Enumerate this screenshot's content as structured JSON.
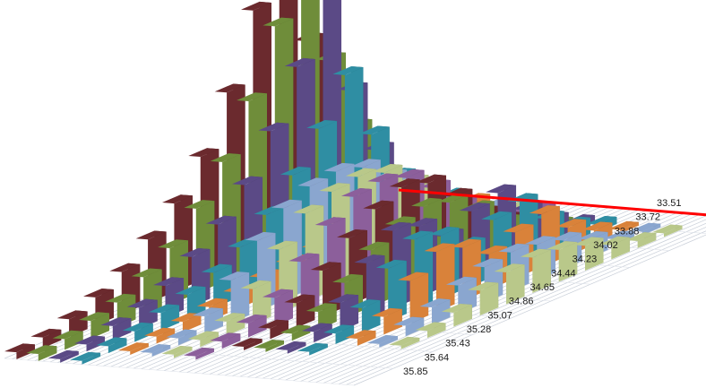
{
  "chart_data": {
    "type": "3d-bar",
    "title": "",
    "xlabel": "",
    "ylabel": "",
    "zlabel": "",
    "depth_axis_ticks": [
      "33.51",
      "33.72",
      "33.88",
      "34.02",
      "34.23",
      "34.44",
      "34.65",
      "34.86",
      "35.07",
      "35.28",
      "35.43",
      "35.64",
      "35.85"
    ],
    "legend": "none",
    "grid": true,
    "colors": {
      "series_palette": [
        "#6b2a2e",
        "#6f8d3a",
        "#5b4a86",
        "#2f8ea3",
        "#d9823a",
        "#8aa6cf",
        "#b9c88a",
        "#8c5f9b"
      ],
      "highlight_series": "#ff0000",
      "floor_line": "#c8ced8",
      "front_edge": "#ff0000"
    },
    "series": [
      {
        "values": [
          0.02,
          0.03,
          0.05,
          0.08,
          0.12,
          0.18,
          0.25,
          0.35,
          0.5,
          0.7,
          1.0,
          0.55,
          0.3,
          0.15,
          0.06
        ]
      },
      {
        "values": [
          0.02,
          0.03,
          0.05,
          0.07,
          0.11,
          0.16,
          0.24,
          0.34,
          0.48,
          0.66,
          0.9,
          0.5,
          0.28,
          0.12,
          0.05
        ]
      },
      {
        "values": [
          0.01,
          0.02,
          0.04,
          0.06,
          0.09,
          0.14,
          0.2,
          0.28,
          0.4,
          0.55,
          0.75,
          0.42,
          0.22,
          0.1,
          0.04
        ]
      },
      {
        "values": [
          0.01,
          0.02,
          0.03,
          0.05,
          0.07,
          0.1,
          0.14,
          0.2,
          0.28,
          0.38,
          0.5,
          0.3,
          0.15,
          0.07,
          0.03
        ]
      },
      {
        "values": [
          0.0,
          0.01,
          0.02,
          0.03,
          0.04,
          0.05,
          0.06,
          0.07,
          0.08,
          0.1,
          0.12,
          0.08,
          0.05,
          0.03,
          0.02
        ]
      },
      {
        "values": [
          0.0,
          0.01,
          0.02,
          0.05,
          0.12,
          0.2,
          0.26,
          0.29,
          0.3,
          0.28,
          0.22,
          0.14,
          0.07,
          0.03,
          0.01
        ]
      },
      {
        "values": [
          0.0,
          0.01,
          0.02,
          0.04,
          0.1,
          0.18,
          0.25,
          0.28,
          0.29,
          0.27,
          0.21,
          0.13,
          0.06,
          0.02,
          0.01
        ]
      },
      {
        "values": [
          0.0,
          0.01,
          0.02,
          0.04,
          0.08,
          0.15,
          0.22,
          0.27,
          0.28,
          0.26,
          0.2,
          0.12,
          0.05,
          0.02,
          0.01
        ]
      },
      {
        "values": [
          0.0,
          0.0,
          0.01,
          0.03,
          0.07,
          0.13,
          0.19,
          0.24,
          0.27,
          0.25,
          0.18,
          0.1,
          0.05,
          0.02,
          0.0
        ]
      },
      {
        "values": [
          0.0,
          0.0,
          0.01,
          0.02,
          0.05,
          0.1,
          0.16,
          0.2,
          0.22,
          0.2,
          0.15,
          0.08,
          0.04,
          0.01,
          0.0
        ]
      },
      {
        "values": [
          0.0,
          0.0,
          0.01,
          0.03,
          0.08,
          0.16,
          0.22,
          0.2,
          0.14,
          0.18,
          0.2,
          0.12,
          0.06,
          0.02,
          0.0
        ]
      },
      {
        "values": [
          0.0,
          0.0,
          0.01,
          0.03,
          0.07,
          0.15,
          0.2,
          0.18,
          0.12,
          0.16,
          0.18,
          0.1,
          0.05,
          0.02,
          0.0
        ]
      },
      {
        "values": [
          0.0,
          0.0,
          0.0,
          0.02,
          0.05,
          0.12,
          0.17,
          0.15,
          0.1,
          0.13,
          0.15,
          0.08,
          0.04,
          0.01,
          0.0
        ]
      },
      {
        "values": [
          0.0,
          0.0,
          0.0,
          0.01,
          0.03,
          0.05,
          0.08,
          0.1,
          0.11,
          0.1,
          0.08,
          0.05,
          0.02,
          0.01,
          0.0
        ]
      },
      {
        "values": [
          0.0,
          0.0,
          0.0,
          0.01,
          0.02,
          0.04,
          0.07,
          0.09,
          0.1,
          0.09,
          0.07,
          0.04,
          0.02,
          0.01,
          0.0
        ]
      },
      {
        "values": [
          0.0,
          0.0,
          0.0,
          0.0,
          0.0,
          0.0,
          0.0,
          0.0,
          0.0,
          0.0,
          0.0,
          0.0,
          0.0,
          0.0,
          1.0
        ],
        "highlight": true
      }
    ]
  }
}
